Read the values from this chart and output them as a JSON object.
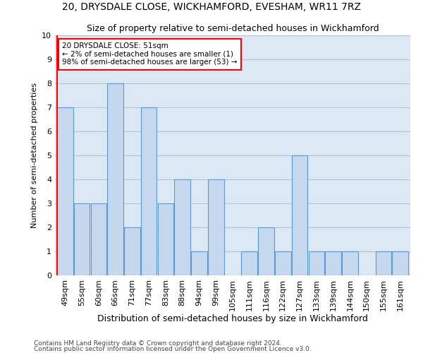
{
  "title": "20, DRYSDALE CLOSE, WICKHAMFORD, EVESHAM, WR11 7RZ",
  "subtitle": "Size of property relative to semi-detached houses in Wickhamford",
  "xlabel": "Distribution of semi-detached houses by size in Wickhamford",
  "ylabel": "Number of semi-detached properties",
  "categories": [
    "49sqm",
    "55sqm",
    "60sqm",
    "66sqm",
    "71sqm",
    "77sqm",
    "83sqm",
    "88sqm",
    "94sqm",
    "99sqm",
    "105sqm",
    "111sqm",
    "116sqm",
    "122sqm",
    "127sqm",
    "133sqm",
    "139sqm",
    "144sqm",
    "150sqm",
    "155sqm",
    "161sqm"
  ],
  "values": [
    7,
    3,
    3,
    8,
    2,
    7,
    3,
    4,
    1,
    4,
    0,
    1,
    2,
    1,
    5,
    1,
    1,
    1,
    0,
    1,
    1
  ],
  "bar_color": "#c5d8ed",
  "bar_edge_color": "#5b9bd5",
  "annotation_text": "20 DRYSDALE CLOSE: 51sqm\n← 2% of semi-detached houses are smaller (1)\n98% of semi-detached houses are larger (53) →",
  "annotation_box_color": "white",
  "annotation_box_edge": "red",
  "highlight_line_color": "red",
  "ylim": [
    0,
    10
  ],
  "yticks": [
    0,
    1,
    2,
    3,
    4,
    5,
    6,
    7,
    8,
    9,
    10
  ],
  "grid_color": "#b0c4d8",
  "bg_color": "#dce9f5",
  "footer1": "Contains HM Land Registry data © Crown copyright and database right 2024.",
  "footer2": "Contains public sector information licensed under the Open Government Licence v3.0.",
  "title_fontsize": 10,
  "subtitle_fontsize": 9,
  "xlabel_fontsize": 9,
  "ylabel_fontsize": 8,
  "tick_fontsize": 8,
  "annotation_fontsize": 7.5,
  "footer_fontsize": 6.5
}
